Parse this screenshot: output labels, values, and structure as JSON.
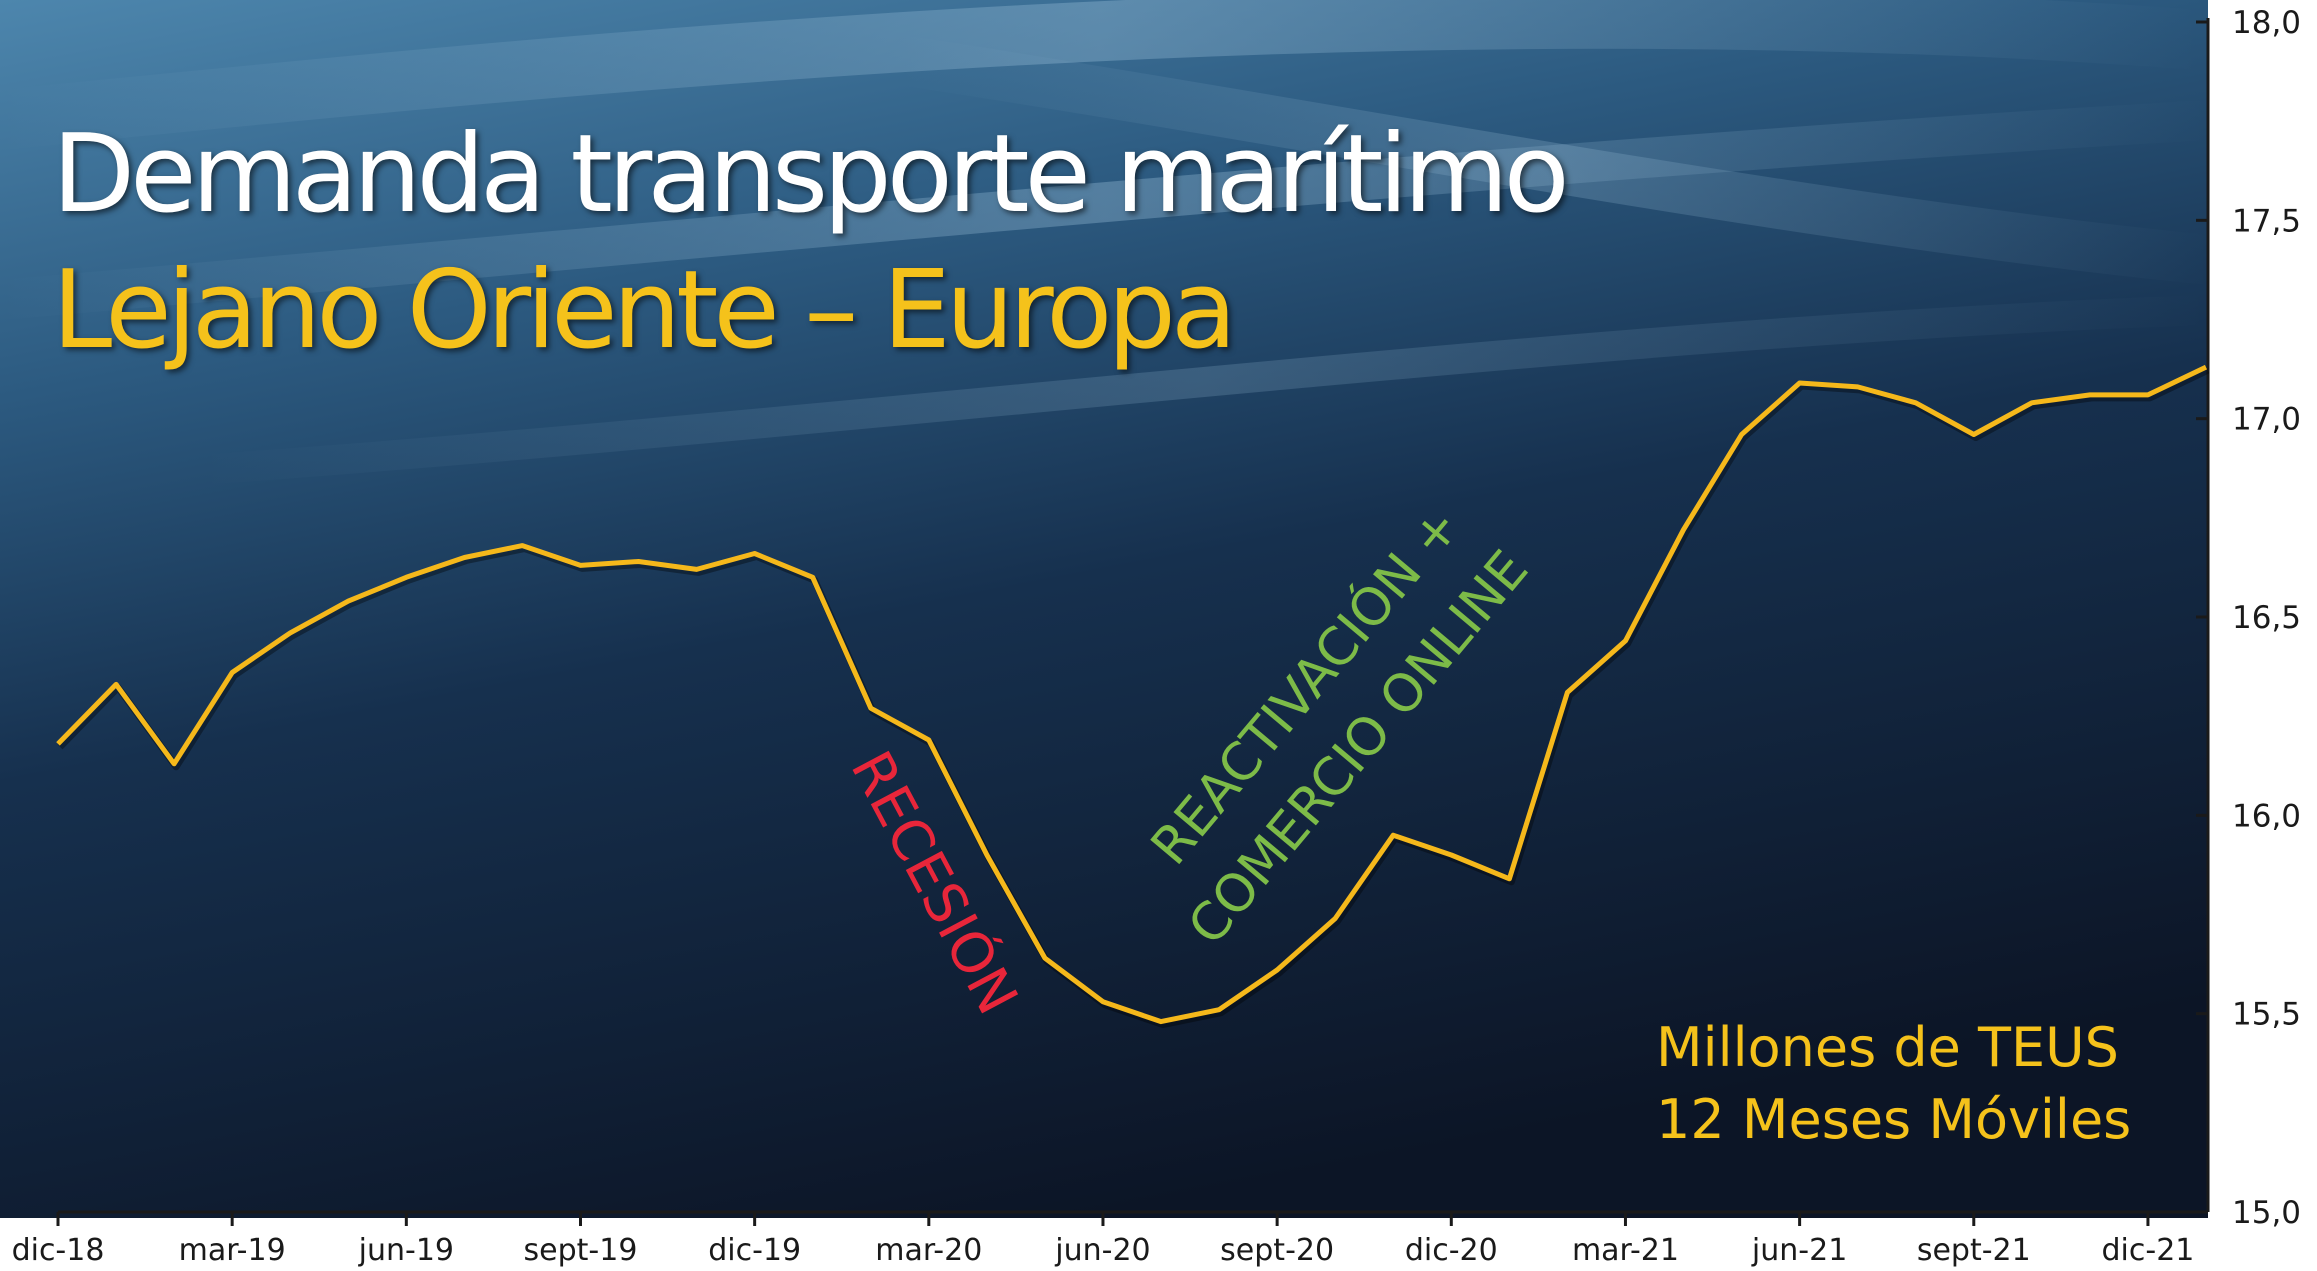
{
  "title": "Demanda transporte marítimo",
  "subtitle": "Lejano Oriente – Europa",
  "unit_line_1": "Millones de TEUS",
  "unit_line_2": "12 Meses Móviles",
  "annotations": [
    {
      "text": "RECESIÓN",
      "color": "#e8263a"
    },
    {
      "text": "REACTIVACIÓN +",
      "color": "#7dbb48"
    },
    {
      "text": "COMERCIO ONLINE",
      "color": "#7dbb48"
    }
  ],
  "colors": {
    "line": "#f5b81b",
    "title": "#ffffff",
    "subtitle": "#f5c21b",
    "axis": "#1a1a1a",
    "sidebar": "#ffffff"
  },
  "chart_data": {
    "type": "line",
    "title": "Demanda transporte marítimo",
    "subtitle": "Lejano Oriente – Europa",
    "xlabel": "",
    "ylabel": "Millones de TEUS",
    "x_tick_labels": [
      "dic-18",
      "mar-19",
      "jun-19",
      "sept-19",
      "dic-19",
      "mar-20",
      "jun-20",
      "sept-20",
      "dic-20",
      "mar-21",
      "jun-21",
      "sept-21",
      "dic-21"
    ],
    "y_tick_labels": [
      "15,0",
      "15,5",
      "16,0",
      "16,5",
      "17,0",
      "17,5",
      "18,0"
    ],
    "ylim": [
      15.0,
      18.0
    ],
    "y_axis_side": "right",
    "grid": false,
    "series": [
      {
        "values": [
          16.18,
          16.33,
          16.13,
          16.36,
          16.46,
          16.54,
          16.6,
          16.65,
          16.68,
          16.63,
          16.64,
          16.62,
          16.66,
          16.6,
          16.27,
          16.19,
          15.9,
          15.64,
          15.53,
          15.48,
          15.51,
          15.61,
          15.74,
          15.95,
          15.9,
          15.84,
          16.31,
          16.44,
          16.72,
          16.96,
          17.09,
          17.08,
          17.04,
          16.96,
          17.04,
          17.06,
          17.06,
          17.13
        ]
      }
    ]
  }
}
